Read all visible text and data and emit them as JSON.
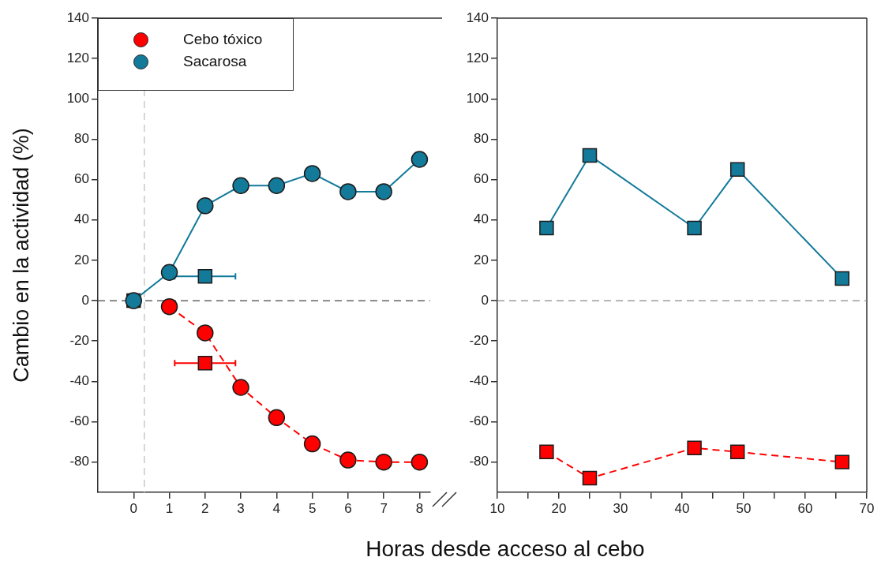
{
  "chart_data": [
    {
      "type": "line",
      "ylabel": "Cambio en la actividad (%)",
      "xlabel": "Horas desde acceso al cebo",
      "xlim": [
        -1,
        8.3
      ],
      "xticks": [
        0,
        1,
        2,
        3,
        4,
        5,
        6,
        7,
        8
      ],
      "ylim": [
        -95,
        140
      ],
      "yticks": [
        -80,
        -60,
        -40,
        -20,
        0,
        20,
        40,
        60,
        80,
        100,
        120,
        140
      ],
      "grid": false,
      "legend": "top left",
      "ref_lines": [
        {
          "axis": "x",
          "value": 0.3,
          "color": "#bbbbbb",
          "line_style": "dashed"
        },
        {
          "axis": "y",
          "value": 0,
          "color": "#444444",
          "line_style": "dashed"
        }
      ],
      "series": [
        {
          "name": "Cebo tóxico",
          "color": "#ff0000",
          "marker": "circle",
          "line_style": "dashed",
          "x": [
            1,
            2,
            3,
            4,
            5,
            6,
            7,
            8
          ],
          "values": [
            -3,
            -16,
            -43,
            -58,
            -71,
            -79,
            -80,
            -80
          ]
        },
        {
          "name": "Sacarosa",
          "color": "#137a9a",
          "marker": "circle",
          "line_style": "solid",
          "x": [
            0,
            1,
            2,
            3,
            4,
            5,
            6,
            7,
            8
          ],
          "values": [
            0,
            14,
            47,
            57,
            57,
            63,
            54,
            54,
            70
          ]
        },
        {
          "type": "scatter",
          "color": "#ff0000",
          "marker": "square",
          "x": [
            0,
            2
          ],
          "values": [
            0,
            -31
          ],
          "xerrors": [
            null,
            0.85
          ]
        },
        {
          "type": "scatter",
          "color": "#137a9a",
          "marker": "square",
          "x": [
            2
          ],
          "values": [
            12
          ],
          "xerrors": [
            0.85
          ]
        }
      ]
    },
    {
      "type": "line",
      "xlim": [
        10,
        70
      ],
      "xticks": [
        10,
        {
          "value": 15,
          "label": null
        },
        20,
        {
          "value": 25,
          "label": null
        },
        30,
        {
          "value": 35,
          "label": null
        },
        40,
        {
          "value": 45,
          "label": null
        },
        50,
        {
          "value": 55,
          "label": null
        },
        60,
        {
          "value": 65,
          "label": null
        },
        70
      ],
      "ylim": [
        -95,
        140
      ],
      "yticks": [
        -80,
        -60,
        -40,
        -20,
        0,
        20,
        40,
        60,
        80,
        100,
        120,
        140
      ],
      "grid": false,
      "ref_lines": [
        {
          "axis": "y",
          "value": 0,
          "color": "#888888",
          "line_style": "dashed"
        }
      ],
      "series": [
        {
          "color": "#137a9a",
          "marker": "square",
          "line_style": "solid",
          "x": [
            18,
            25,
            42,
            49,
            66
          ],
          "values": [
            36,
            72,
            36,
            65,
            11
          ]
        },
        {
          "color": "#ff0000",
          "marker": "square",
          "line_style": "dashed",
          "x": [
            18,
            25,
            42,
            49,
            66
          ],
          "values": [
            -75,
            -88,
            -73,
            -75,
            -80
          ]
        }
      ]
    }
  ]
}
